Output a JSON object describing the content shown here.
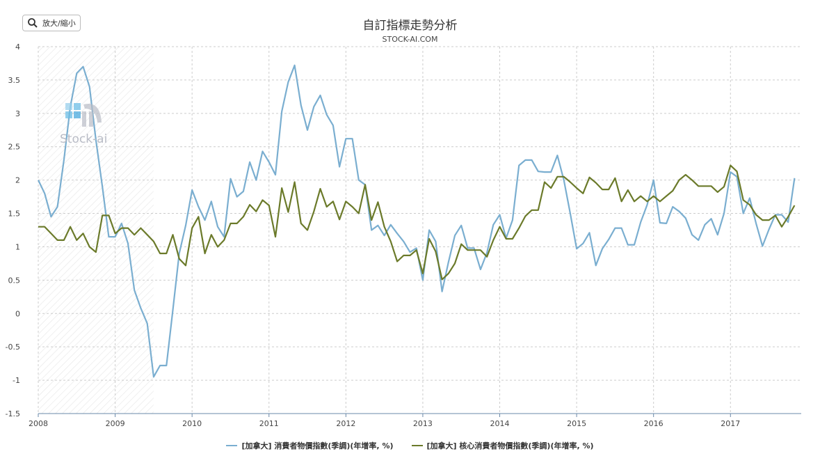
{
  "toolbar": {
    "zoom_label": "放大/縮小",
    "zoom_icon": "search-icon"
  },
  "watermark": {
    "text": "Stock-ai"
  },
  "colors": {
    "series1": "#7aaed0",
    "series2": "#6b7a2a",
    "grid": "#cccccc",
    "axis": "#6a88a8"
  },
  "chart_data": {
    "type": "line",
    "title": "自訂指標走勢分析",
    "subtitle": "STOCK-AI.COM",
    "xlabel": "",
    "ylabel": "",
    "ylim": [
      -1.5,
      4
    ],
    "yticks": [
      "4",
      "3.5",
      "3",
      "2.5",
      "2",
      "1.5",
      "1",
      "0.5",
      "0",
      "-0.5",
      "-1",
      "-1.5"
    ],
    "xlim": [
      2008.0,
      2017.92
    ],
    "xticks": [
      "2008",
      "2009",
      "2010",
      "2011",
      "2012",
      "2013",
      "2014",
      "2015",
      "2016",
      "2017"
    ],
    "highlight_band": [
      2008.0,
      2009.5
    ],
    "grid": true,
    "legend_position": "bottom",
    "x_start": 2008.0,
    "x_step_months": 1,
    "series": [
      {
        "name": "[加拿大] 消費者物價指數(季調)(年增率, %)",
        "color": "#7aaed0",
        "values": [
          2.0,
          1.8,
          1.45,
          1.6,
          2.3,
          3.1,
          3.6,
          3.7,
          3.4,
          2.6,
          1.9,
          1.15,
          1.15,
          1.35,
          1.05,
          0.35,
          0.08,
          -0.15,
          -0.95,
          -0.78,
          -0.78,
          0.05,
          0.9,
          1.32,
          1.85,
          1.6,
          1.4,
          1.68,
          1.3,
          1.15,
          2.02,
          1.75,
          1.83,
          2.27,
          2.0,
          2.43,
          2.27,
          2.08,
          3.03,
          3.47,
          3.72,
          3.12,
          2.75,
          3.1,
          3.27,
          2.98,
          2.82,
          2.2,
          2.62,
          2.62,
          2.0,
          1.93,
          1.25,
          1.32,
          1.17,
          1.33,
          1.2,
          1.08,
          0.92,
          0.98,
          0.5,
          1.25,
          1.08,
          0.33,
          0.77,
          1.17,
          1.32,
          0.98,
          0.98,
          0.66,
          0.91,
          1.33,
          1.48,
          1.13,
          1.4,
          2.22,
          2.3,
          2.3,
          2.13,
          2.12,
          2.12,
          2.37,
          2.0,
          1.5,
          0.97,
          1.05,
          1.21,
          0.72,
          0.97,
          1.11,
          1.28,
          1.28,
          1.03,
          1.03,
          1.37,
          1.63,
          2.0,
          1.36,
          1.35,
          1.6,
          1.53,
          1.43,
          1.18,
          1.1,
          1.33,
          1.42,
          1.18,
          1.5,
          2.12,
          2.05,
          1.5,
          1.73,
          1.35,
          1.01,
          1.26,
          1.48,
          1.48,
          1.37,
          2.03
        ]
      },
      {
        "name": "[加拿大] 核心消費者物價指數(季調)(年增率, %)",
        "color": "#6b7a2a",
        "values": [
          1.3,
          1.3,
          1.2,
          1.1,
          1.1,
          1.3,
          1.1,
          1.2,
          1.0,
          0.92,
          1.47,
          1.47,
          1.2,
          1.28,
          1.28,
          1.18,
          1.28,
          1.18,
          1.08,
          0.9,
          0.9,
          1.18,
          0.82,
          0.72,
          1.28,
          1.45,
          0.9,
          1.18,
          1.0,
          1.1,
          1.35,
          1.35,
          1.45,
          1.63,
          1.53,
          1.7,
          1.62,
          1.15,
          1.88,
          1.52,
          1.97,
          1.35,
          1.25,
          1.53,
          1.87,
          1.6,
          1.68,
          1.41,
          1.68,
          1.6,
          1.5,
          1.93,
          1.4,
          1.67,
          1.3,
          1.08,
          0.78,
          0.87,
          0.87,
          0.95,
          0.6,
          1.12,
          0.93,
          0.51,
          0.6,
          0.75,
          1.04,
          0.95,
          0.95,
          0.95,
          0.85,
          1.1,
          1.3,
          1.12,
          1.12,
          1.28,
          1.46,
          1.55,
          1.55,
          1.97,
          1.88,
          2.05,
          2.05,
          1.97,
          1.88,
          1.8,
          2.04,
          1.96,
          1.86,
          1.86,
          2.03,
          1.68,
          1.85,
          1.68,
          1.76,
          1.68,
          1.76,
          1.68,
          1.76,
          1.84,
          2.0,
          2.08,
          2.0,
          1.91,
          1.91,
          1.91,
          1.82,
          1.9,
          2.22,
          2.13,
          1.7,
          1.63,
          1.48,
          1.4,
          1.4,
          1.47,
          1.3,
          1.45,
          1.62
        ]
      }
    ]
  }
}
